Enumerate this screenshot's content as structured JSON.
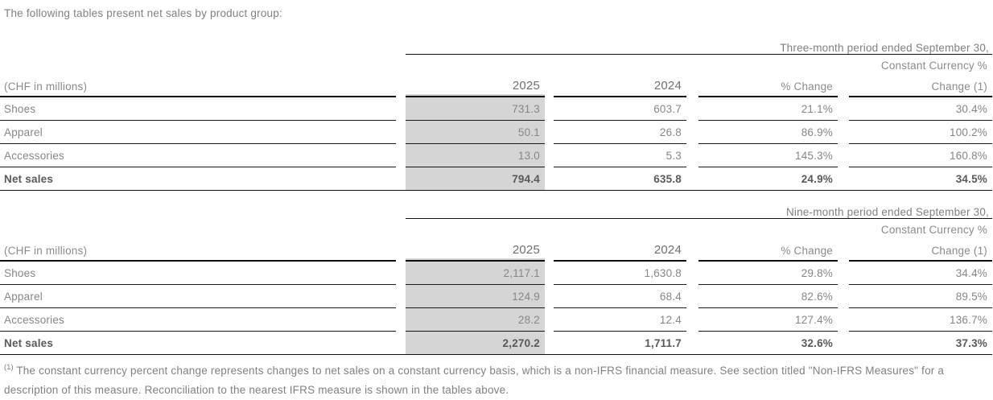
{
  "intro": "The following tables present net sales by product group:",
  "tables": [
    {
      "period_header": "Three-month period ended September 30,",
      "unit_label": "(CHF in millions)",
      "col_2025": "2025",
      "col_2024": "2024",
      "col_pct": "% Change",
      "cc_header_line1": "Constant Currency %",
      "cc_header_line2": "Change (1)",
      "rows": [
        {
          "label": "Shoes",
          "v2025": "731.3",
          "v2024": "603.7",
          "pct": "21.1%",
          "cc": "30.4%"
        },
        {
          "label": "Apparel",
          "v2025": "50.1",
          "v2024": "26.8",
          "pct": "86.9%",
          "cc": "100.2%"
        },
        {
          "label": "Accessories",
          "v2025": "13.0",
          "v2024": "5.3",
          "pct": "145.3%",
          "cc": "160.8%"
        },
        {
          "label": "Net sales",
          "v2025": "794.4",
          "v2024": "635.8",
          "pct": "24.9%",
          "cc": "34.5%"
        }
      ]
    },
    {
      "period_header": "Nine-month period ended September 30,",
      "unit_label": "(CHF in millions)",
      "col_2025": "2025",
      "col_2024": "2024",
      "col_pct": "% Change",
      "cc_header_line1": "Constant Currency %",
      "cc_header_line2": "Change (1)",
      "rows": [
        {
          "label": "Shoes",
          "v2025": "2,117.1",
          "v2024": "1,630.8",
          "pct": "29.8%",
          "cc": "34.4%"
        },
        {
          "label": "Apparel",
          "v2025": "124.9",
          "v2024": "68.4",
          "pct": "82.6%",
          "cc": "89.5%"
        },
        {
          "label": "Accessories",
          "v2025": "28.2",
          "v2024": "12.4",
          "pct": "127.4%",
          "cc": "136.7%"
        },
        {
          "label": "Net sales",
          "v2025": "2,270.2",
          "v2024": "1,711.7",
          "pct": "32.6%",
          "cc": "37.3%"
        }
      ]
    }
  ],
  "footnote": {
    "marker": "(1)",
    "text": "The constant currency percent change represents changes to net sales on a constant currency basis, which is a non-IFRS financial measure. See section titled \"Non-IFRS Measures\" for a description of this measure. Reconciliation to the nearest IFRS measure is shown in the tables above."
  },
  "colors": {
    "highlight_column": "#d5d5d5",
    "rule": "#0d0d0d",
    "body_text": "#868686",
    "bold_text": "#595959"
  }
}
